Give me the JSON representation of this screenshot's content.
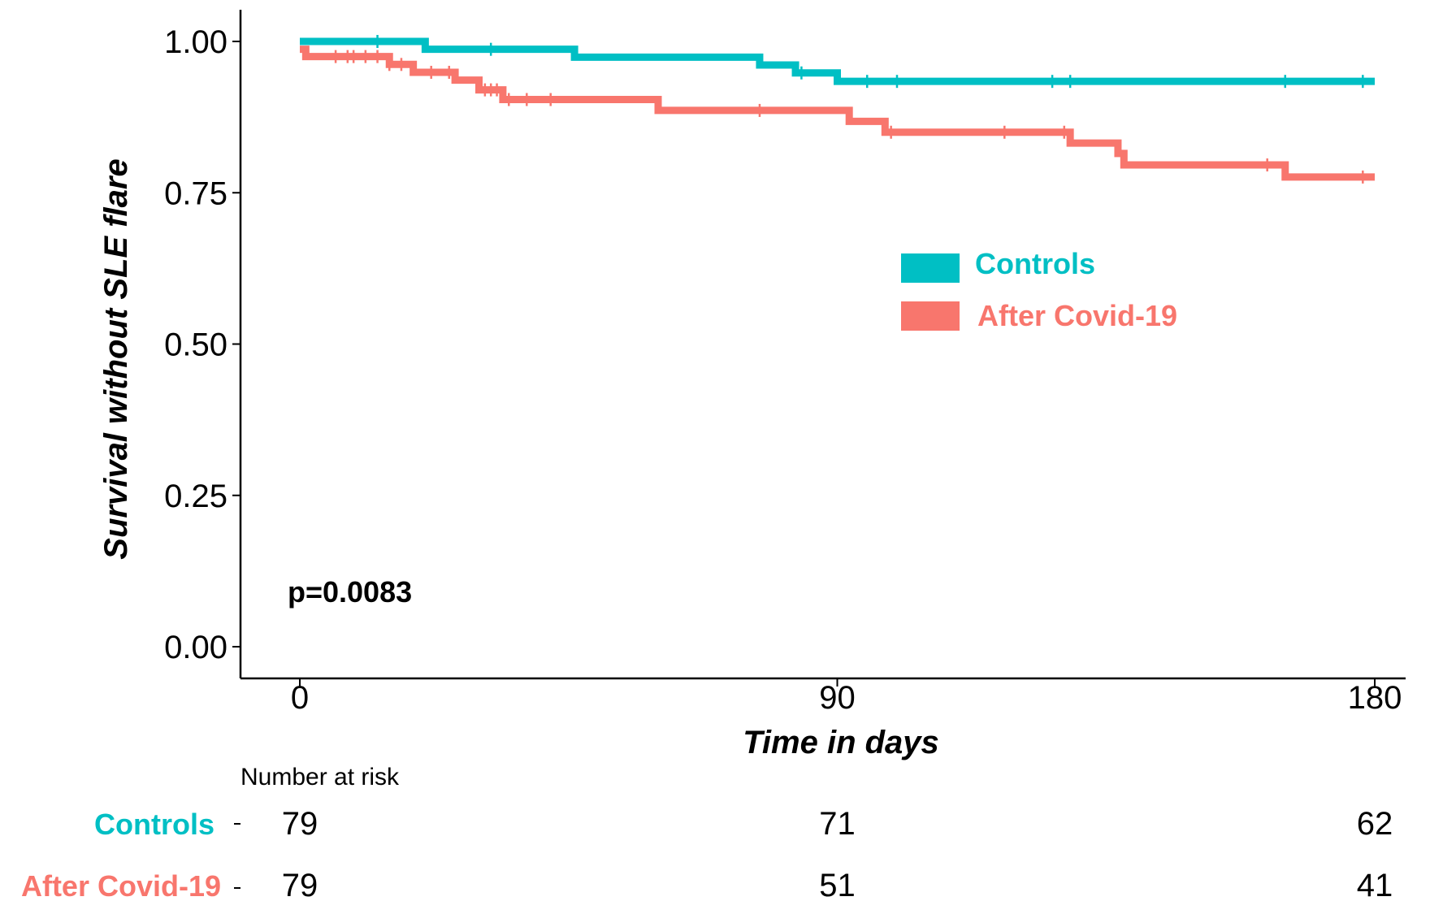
{
  "colors": {
    "controls": "#00BFC4",
    "covid": "#F8766D"
  },
  "chart_data": {
    "type": "line",
    "step": true,
    "xlabel": "Time in days",
    "ylabel": "Survival without SLE flare",
    "xlim": [
      0,
      180
    ],
    "ylim": [
      0,
      1
    ],
    "xticks": [
      0,
      90,
      180
    ],
    "yticks": [
      0,
      0.25,
      0.5,
      0.75,
      1
    ],
    "ytick_labels": [
      "0.00",
      "0.25",
      "0.50",
      "0.75",
      "1.00"
    ],
    "annotation": "p=0.0083",
    "legend_position": "right",
    "series": [
      {
        "name": "Controls",
        "color": "#00BFC4",
        "steps": [
          [
            0,
            1.0
          ],
          [
            21,
            0.987
          ],
          [
            46,
            0.974
          ],
          [
            77,
            0.961
          ],
          [
            83,
            0.948
          ],
          [
            90,
            0.934
          ],
          [
            180,
            0.934
          ]
        ],
        "censor": [
          13,
          32,
          84,
          95,
          100,
          126,
          129,
          165,
          178
        ]
      },
      {
        "name": "After Covid-19",
        "color": "#F8766D",
        "steps": [
          [
            0,
            0.987
          ],
          [
            1,
            0.975
          ],
          [
            15,
            0.962
          ],
          [
            19,
            0.949
          ],
          [
            26,
            0.936
          ],
          [
            30,
            0.92
          ],
          [
            34,
            0.904
          ],
          [
            60,
            0.886
          ],
          [
            92,
            0.868
          ],
          [
            98,
            0.85
          ],
          [
            129,
            0.832
          ],
          [
            137,
            0.815
          ],
          [
            138,
            0.796
          ],
          [
            165,
            0.776
          ],
          [
            180,
            0.776
          ]
        ],
        "censor": [
          6,
          8,
          9,
          11,
          13,
          15,
          17,
          22,
          25,
          31,
          32,
          33,
          35,
          38,
          42,
          77,
          99,
          118,
          128,
          162,
          178
        ]
      }
    ],
    "risk_table": {
      "title": "Number at risk",
      "times": [
        0,
        90,
        180
      ],
      "rows": [
        {
          "label": "Controls",
          "values": [
            "79",
            "71",
            "62"
          ]
        },
        {
          "label": "After Covid-19",
          "values": [
            "79",
            "51",
            "41"
          ]
        }
      ]
    }
  }
}
